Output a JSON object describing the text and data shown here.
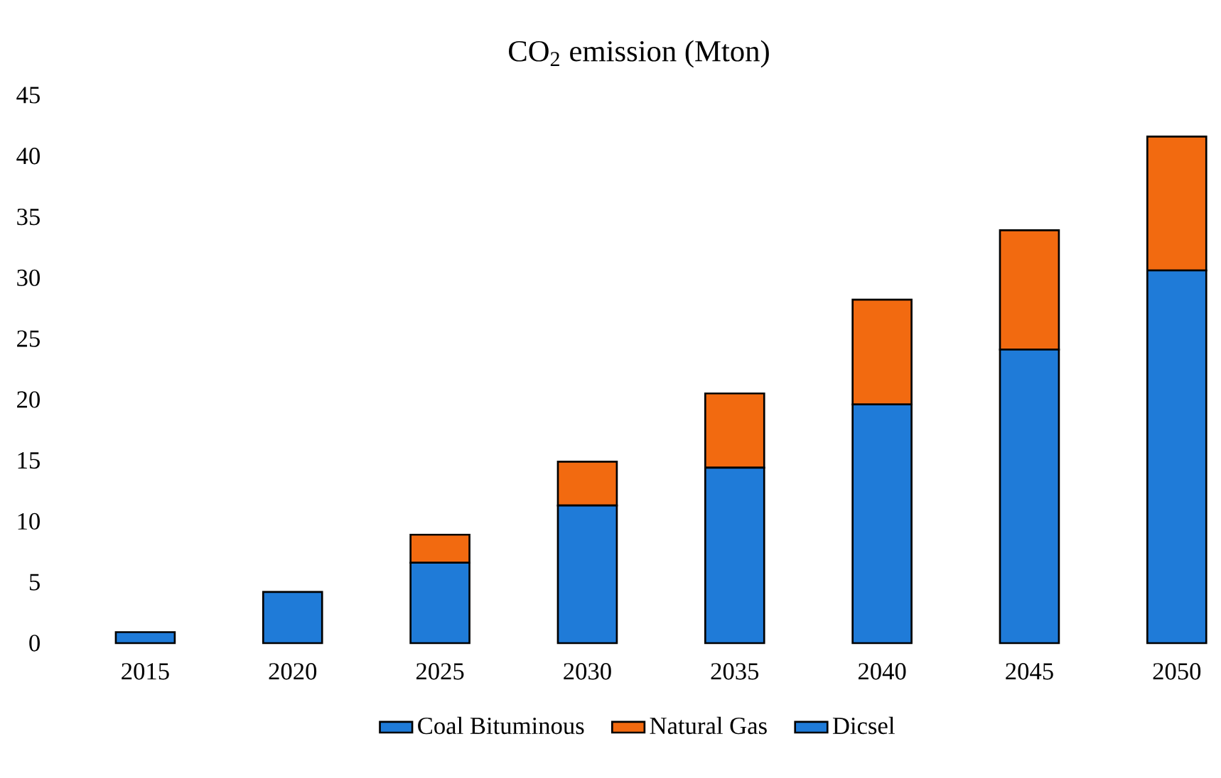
{
  "chart_data": {
    "type": "bar",
    "stacked": true,
    "title": "CO$_{2}$ emission (Mton)",
    "categories": [
      "2015",
      "2020",
      "2025",
      "2030",
      "2035",
      "2040",
      "2045",
      "2050"
    ],
    "series": [
      {
        "name": "Coal Bituminous",
        "color": "#1f7bd8",
        "values": [
          0.9,
          4.2,
          6.6,
          11.3,
          14.4,
          19.6,
          24.1,
          30.6
        ]
      },
      {
        "name": "Natural Gas",
        "color": "#f26a10",
        "values": [
          0,
          0,
          2.3,
          3.6,
          6.1,
          8.6,
          9.8,
          11.0
        ]
      },
      {
        "name": "Dicsel",
        "color": "#1f7bd8",
        "values": [
          0,
          0,
          0,
          0,
          0,
          0,
          0,
          0
        ]
      }
    ],
    "ylim": [
      0,
      45
    ],
    "yticks": [
      0,
      5,
      10,
      15,
      20,
      25,
      30,
      35,
      40,
      45
    ],
    "grid": false,
    "legend": "bottom"
  }
}
